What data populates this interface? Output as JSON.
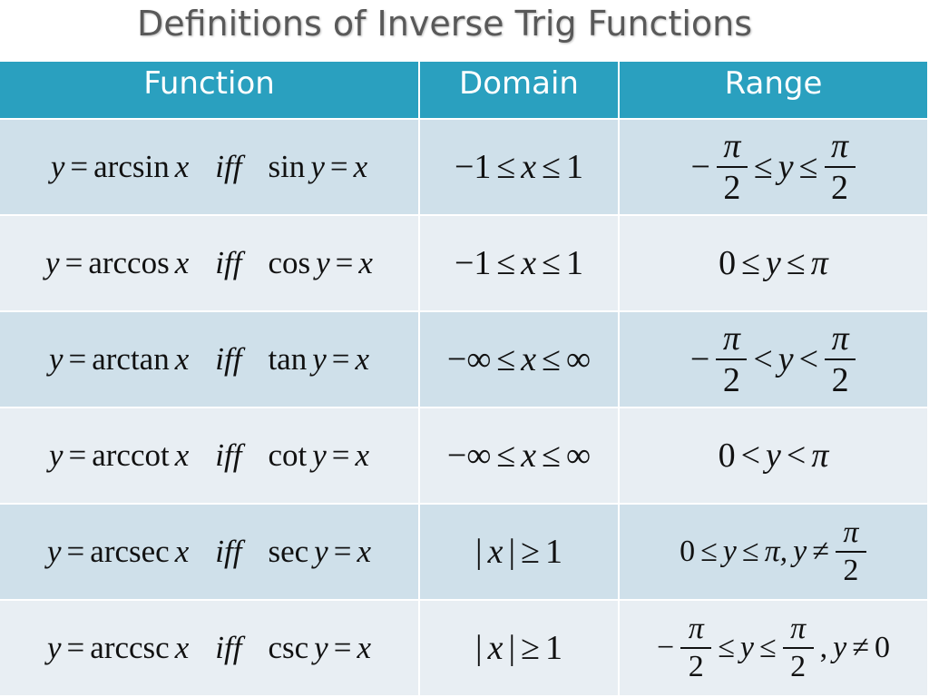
{
  "title": "Definitions of Inverse Trig Functions",
  "table": {
    "header": [
      "Function",
      "Domain",
      "Range"
    ],
    "rows": [
      [
        [
          "y",
          "=",
          "arcsin",
          "x",
          "iff",
          "sin",
          "y",
          "=",
          "x"
        ],
        [
          "−1",
          "≤",
          "x",
          "≤",
          "1"
        ],
        [
          "−",
          {
            "num": "π",
            "den": "2"
          },
          "≤",
          "y",
          "≤",
          {
            "num": "π",
            "den": "2"
          }
        ]
      ],
      [
        [
          "y",
          "=",
          "arccos",
          "x",
          "iff",
          "cos",
          "y",
          "=",
          "x"
        ],
        [
          "−1",
          "≤",
          "x",
          "≤",
          "1"
        ],
        [
          "0",
          "≤",
          "y",
          "≤",
          "π"
        ]
      ],
      [
        [
          "y",
          "=",
          "arctan",
          "x",
          "iff",
          "tan",
          "y",
          "=",
          "x"
        ],
        [
          "−∞",
          "≤",
          "x",
          "≤",
          "∞"
        ],
        [
          "−",
          {
            "num": "π",
            "den": "2"
          },
          "<",
          "y",
          "<",
          {
            "num": "π",
            "den": "2"
          }
        ]
      ],
      [
        [
          "y",
          "=",
          "arccot",
          "x",
          "iff",
          "cot",
          "y",
          "=",
          "x"
        ],
        [
          "−∞",
          "≤",
          "x",
          "≤",
          "∞"
        ],
        [
          "0",
          "<",
          "y",
          "<",
          "π"
        ]
      ],
      [
        [
          "y",
          "=",
          "arcsec",
          "x",
          "iff",
          "sec",
          "y",
          "=",
          "x"
        ],
        [
          "|",
          "x",
          "|",
          "≥",
          "1"
        ],
        [
          "0",
          "≤",
          "y",
          "≤",
          "π,",
          "y",
          "≠",
          {
            "num": "π",
            "den": "2"
          }
        ]
      ],
      [
        [
          "y",
          "=",
          "arccsc",
          "x",
          "iff",
          "csc",
          "y",
          "=",
          "x"
        ],
        [
          "|",
          "x",
          "|",
          "≥",
          "1"
        ],
        [
          "−",
          {
            "num": "π",
            "den": "2"
          },
          "≤",
          "y",
          "≤",
          {
            "num": "π",
            "den": "2"
          },
          ",",
          "y",
          "≠",
          "0"
        ]
      ]
    ]
  }
}
